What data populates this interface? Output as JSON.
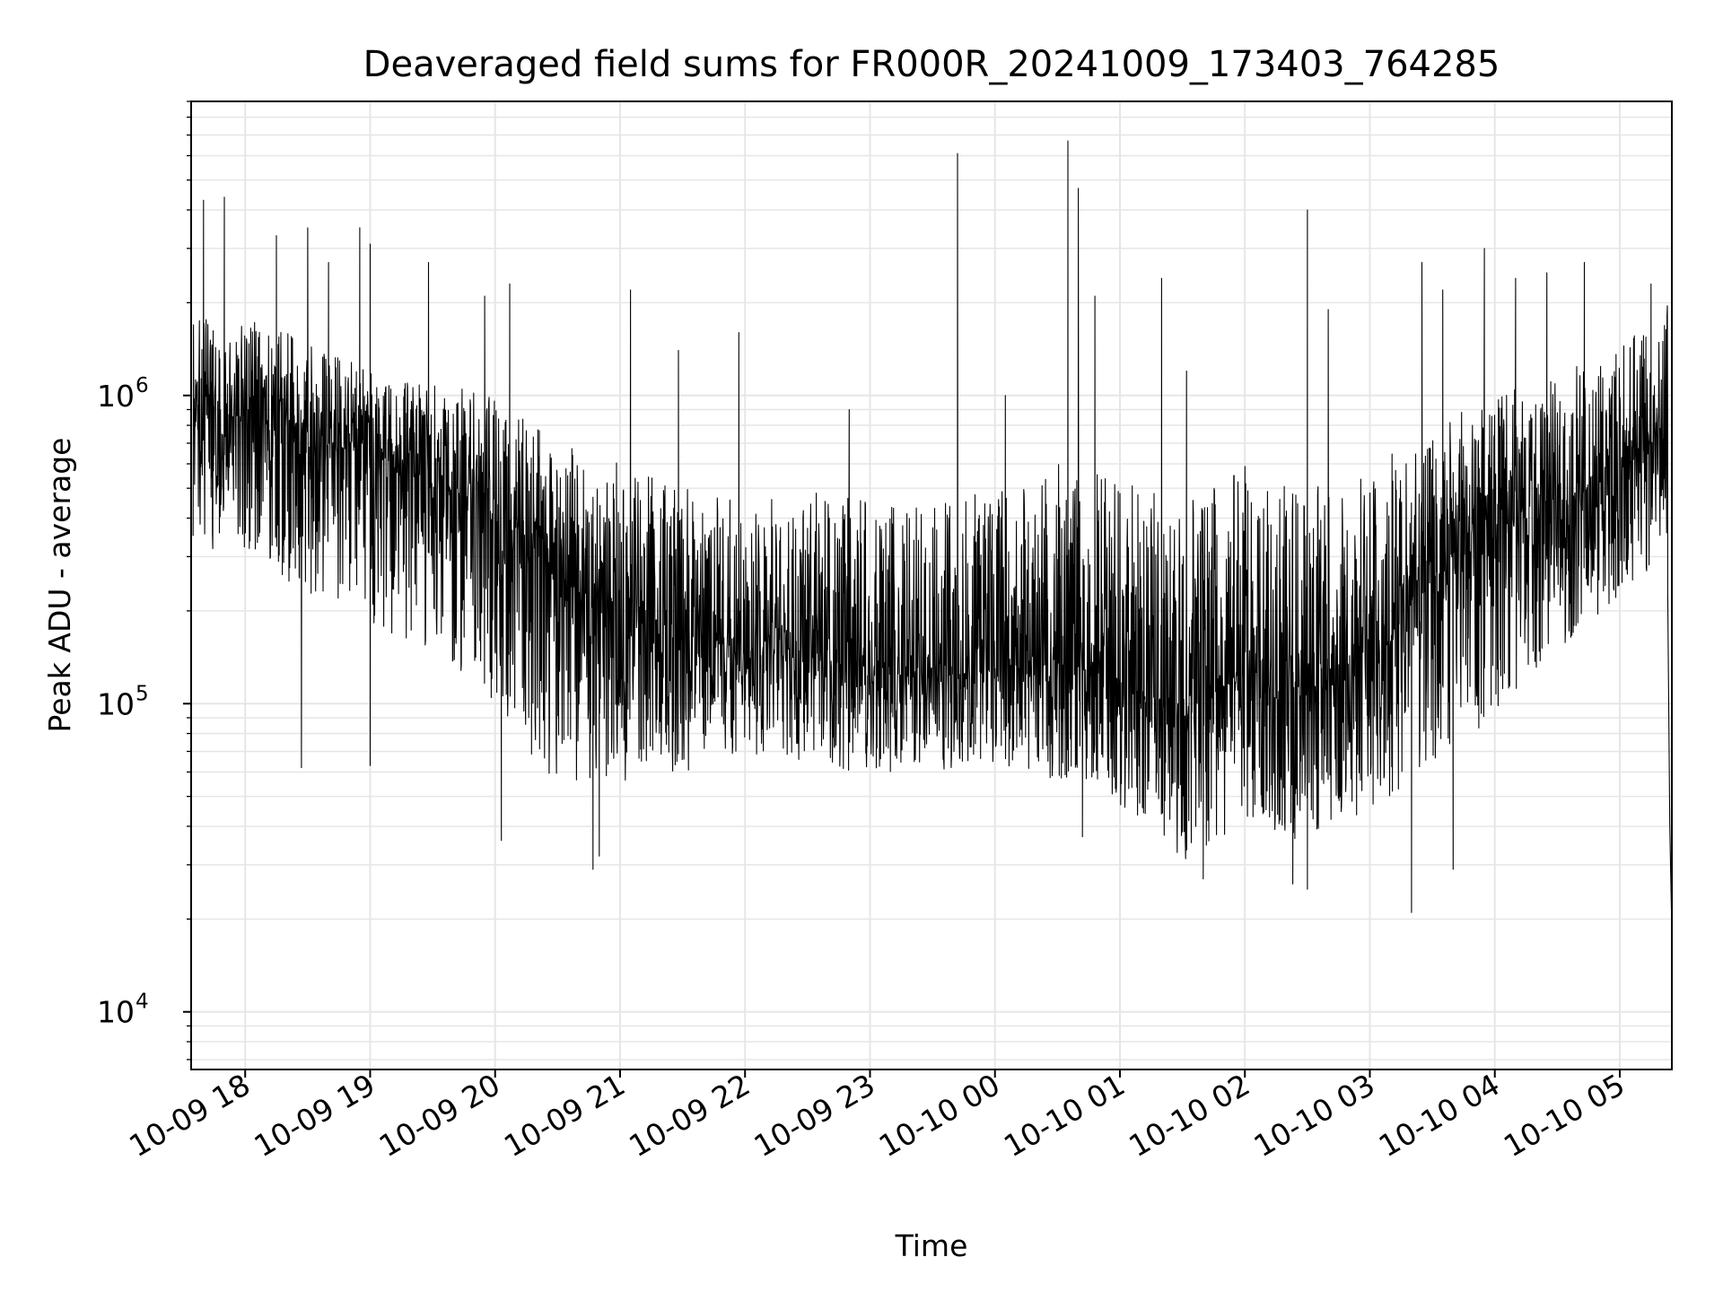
{
  "chart_data": {
    "type": "line",
    "title": "Deaveraged field sums for FR000R_20241009_173403_764285",
    "xlabel": "Time",
    "ylabel": "Peak ADU - average",
    "yscale": "log",
    "ylim": [
      6500,
      9000000
    ],
    "xlim": [
      "2024-10-09 17:34:03",
      "2024-10-10 05:25:00"
    ],
    "grid": true,
    "line_color": "#000000",
    "grid_color": "#e6e6e6",
    "y_ticks": [
      {
        "value": 10000,
        "base": "10",
        "exp": "4"
      },
      {
        "value": 100000,
        "base": "10",
        "exp": "5"
      },
      {
        "value": 1000000,
        "base": "10",
        "exp": "6"
      }
    ],
    "x_ticks": [
      {
        "value": "2024-10-09 18:00",
        "label": "10-09 18"
      },
      {
        "value": "2024-10-09 19:00",
        "label": "10-09 19"
      },
      {
        "value": "2024-10-09 20:00",
        "label": "10-09 20"
      },
      {
        "value": "2024-10-09 21:00",
        "label": "10-09 21"
      },
      {
        "value": "2024-10-09 22:00",
        "label": "10-09 22"
      },
      {
        "value": "2024-10-09 23:00",
        "label": "10-09 23"
      },
      {
        "value": "2024-10-10 00:00",
        "label": "10-10 00"
      },
      {
        "value": "2024-10-10 01:00",
        "label": "10-10 01"
      },
      {
        "value": "2024-10-10 02:00",
        "label": "10-10 02"
      },
      {
        "value": "2024-10-10 03:00",
        "label": "10-10 03"
      },
      {
        "value": "2024-10-10 04:00",
        "label": "10-10 04"
      },
      {
        "value": "2024-10-10 05:00",
        "label": "10-10 05"
      }
    ],
    "series": [
      {
        "x": [
          "2024-10-09 17:35",
          "2024-10-09 18:00",
          "2024-10-09 18:30",
          "2024-10-09 19:00",
          "2024-10-09 19:30",
          "2024-10-09 20:00",
          "2024-10-09 20:30",
          "2024-10-09 21:00",
          "2024-10-09 21:30",
          "2024-10-09 22:00",
          "2024-10-09 22:30",
          "2024-10-09 23:00",
          "2024-10-09 23:30",
          "2024-10-10 00:00",
          "2024-10-10 00:30",
          "2024-10-10 01:00",
          "2024-10-10 01:30",
          "2024-10-10 02:00",
          "2024-10-10 02:30",
          "2024-10-10 03:00",
          "2024-10-10 03:30",
          "2024-10-10 04:00",
          "2024-10-10 04:30",
          "2024-10-10 05:00",
          "2024-10-10 05:20"
        ],
        "center": [
          900000,
          850000,
          700000,
          650000,
          500000,
          450000,
          250000,
          200000,
          170000,
          150000,
          160000,
          130000,
          120000,
          130000,
          140000,
          120000,
          90000,
          130000,
          110000,
          140000,
          250000,
          350000,
          450000,
          550000,
          800000
        ],
        "high": [
          1900000,
          1800000,
          1500000,
          1200000,
          1100000,
          1000000,
          700000,
          600000,
          500000,
          450000,
          500000,
          450000,
          450000,
          500000,
          600000,
          550000,
          450000,
          600000,
          500000,
          600000,
          800000,
          1000000,
          1200000,
          1400000,
          2000000
        ],
        "low": [
          320000,
          300000,
          220000,
          180000,
          150000,
          100000,
          50000,
          55000,
          60000,
          70000,
          62000,
          60000,
          60000,
          65000,
          55000,
          45000,
          30000,
          40000,
          35000,
          45000,
          60000,
          90000,
          150000,
          220000,
          300000
        ],
        "spikes": [
          {
            "x": "2024-10-09 17:40",
            "y": 4300000
          },
          {
            "x": "2024-10-09 17:50",
            "y": 4400000
          },
          {
            "x": "2024-10-09 18:15",
            "y": 3300000
          },
          {
            "x": "2024-10-09 18:30",
            "y": 3500000
          },
          {
            "x": "2024-10-09 18:40",
            "y": 2700000
          },
          {
            "x": "2024-10-09 18:55",
            "y": 3500000
          },
          {
            "x": "2024-10-09 19:00",
            "y": 3100000
          },
          {
            "x": "2024-10-09 19:28",
            "y": 2700000
          },
          {
            "x": "2024-10-09 19:55",
            "y": 2100000
          },
          {
            "x": "2024-10-09 20:07",
            "y": 2300000
          },
          {
            "x": "2024-10-09 21:05",
            "y": 2200000
          },
          {
            "x": "2024-10-09 21:28",
            "y": 1400000
          },
          {
            "x": "2024-10-09 21:57",
            "y": 1600000
          },
          {
            "x": "2024-10-09 22:50",
            "y": 900000
          },
          {
            "x": "2024-10-09 23:42",
            "y": 6100000
          },
          {
            "x": "2024-10-10 00:05",
            "y": 1000000
          },
          {
            "x": "2024-10-10 00:35",
            "y": 6700000
          },
          {
            "x": "2024-10-10 00:40",
            "y": 4700000
          },
          {
            "x": "2024-10-10 00:48",
            "y": 2100000
          },
          {
            "x": "2024-10-10 01:20",
            "y": 2400000
          },
          {
            "x": "2024-10-10 01:32",
            "y": 1200000
          },
          {
            "x": "2024-10-10 02:30",
            "y": 4000000
          },
          {
            "x": "2024-10-10 02:40",
            "y": 1900000
          },
          {
            "x": "2024-10-10 03:25",
            "y": 2700000
          },
          {
            "x": "2024-10-10 03:35",
            "y": 2200000
          },
          {
            "x": "2024-10-10 03:55",
            "y": 3000000
          },
          {
            "x": "2024-10-10 04:10",
            "y": 2400000
          },
          {
            "x": "2024-10-10 04:25",
            "y": 2500000
          },
          {
            "x": "2024-10-10 04:43",
            "y": 2700000
          },
          {
            "x": "2024-10-10 05:15",
            "y": 2300000
          }
        ],
        "dips": [
          {
            "x": "2024-10-09 18:27",
            "y": 62000
          },
          {
            "x": "2024-10-09 19:00",
            "y": 63000
          },
          {
            "x": "2024-10-09 20:03",
            "y": 36000
          },
          {
            "x": "2024-10-09 20:47",
            "y": 29000
          },
          {
            "x": "2024-10-09 20:50",
            "y": 32000
          },
          {
            "x": "2024-10-10 00:42",
            "y": 37000
          },
          {
            "x": "2024-10-10 01:40",
            "y": 27000
          },
          {
            "x": "2024-10-10 02:23",
            "y": 26000
          },
          {
            "x": "2024-10-10 02:30",
            "y": 25000
          },
          {
            "x": "2024-10-10 03:20",
            "y": 21000
          },
          {
            "x": "2024-10-10 03:40",
            "y": 29000
          }
        ],
        "end_drop": [
          {
            "x": "2024-10-10 05:23",
            "y": 230000
          },
          {
            "x": "2024-10-10 05:24",
            "y": 40000
          },
          {
            "x": "2024-10-10 05:25",
            "y": 18000
          }
        ]
      }
    ]
  }
}
